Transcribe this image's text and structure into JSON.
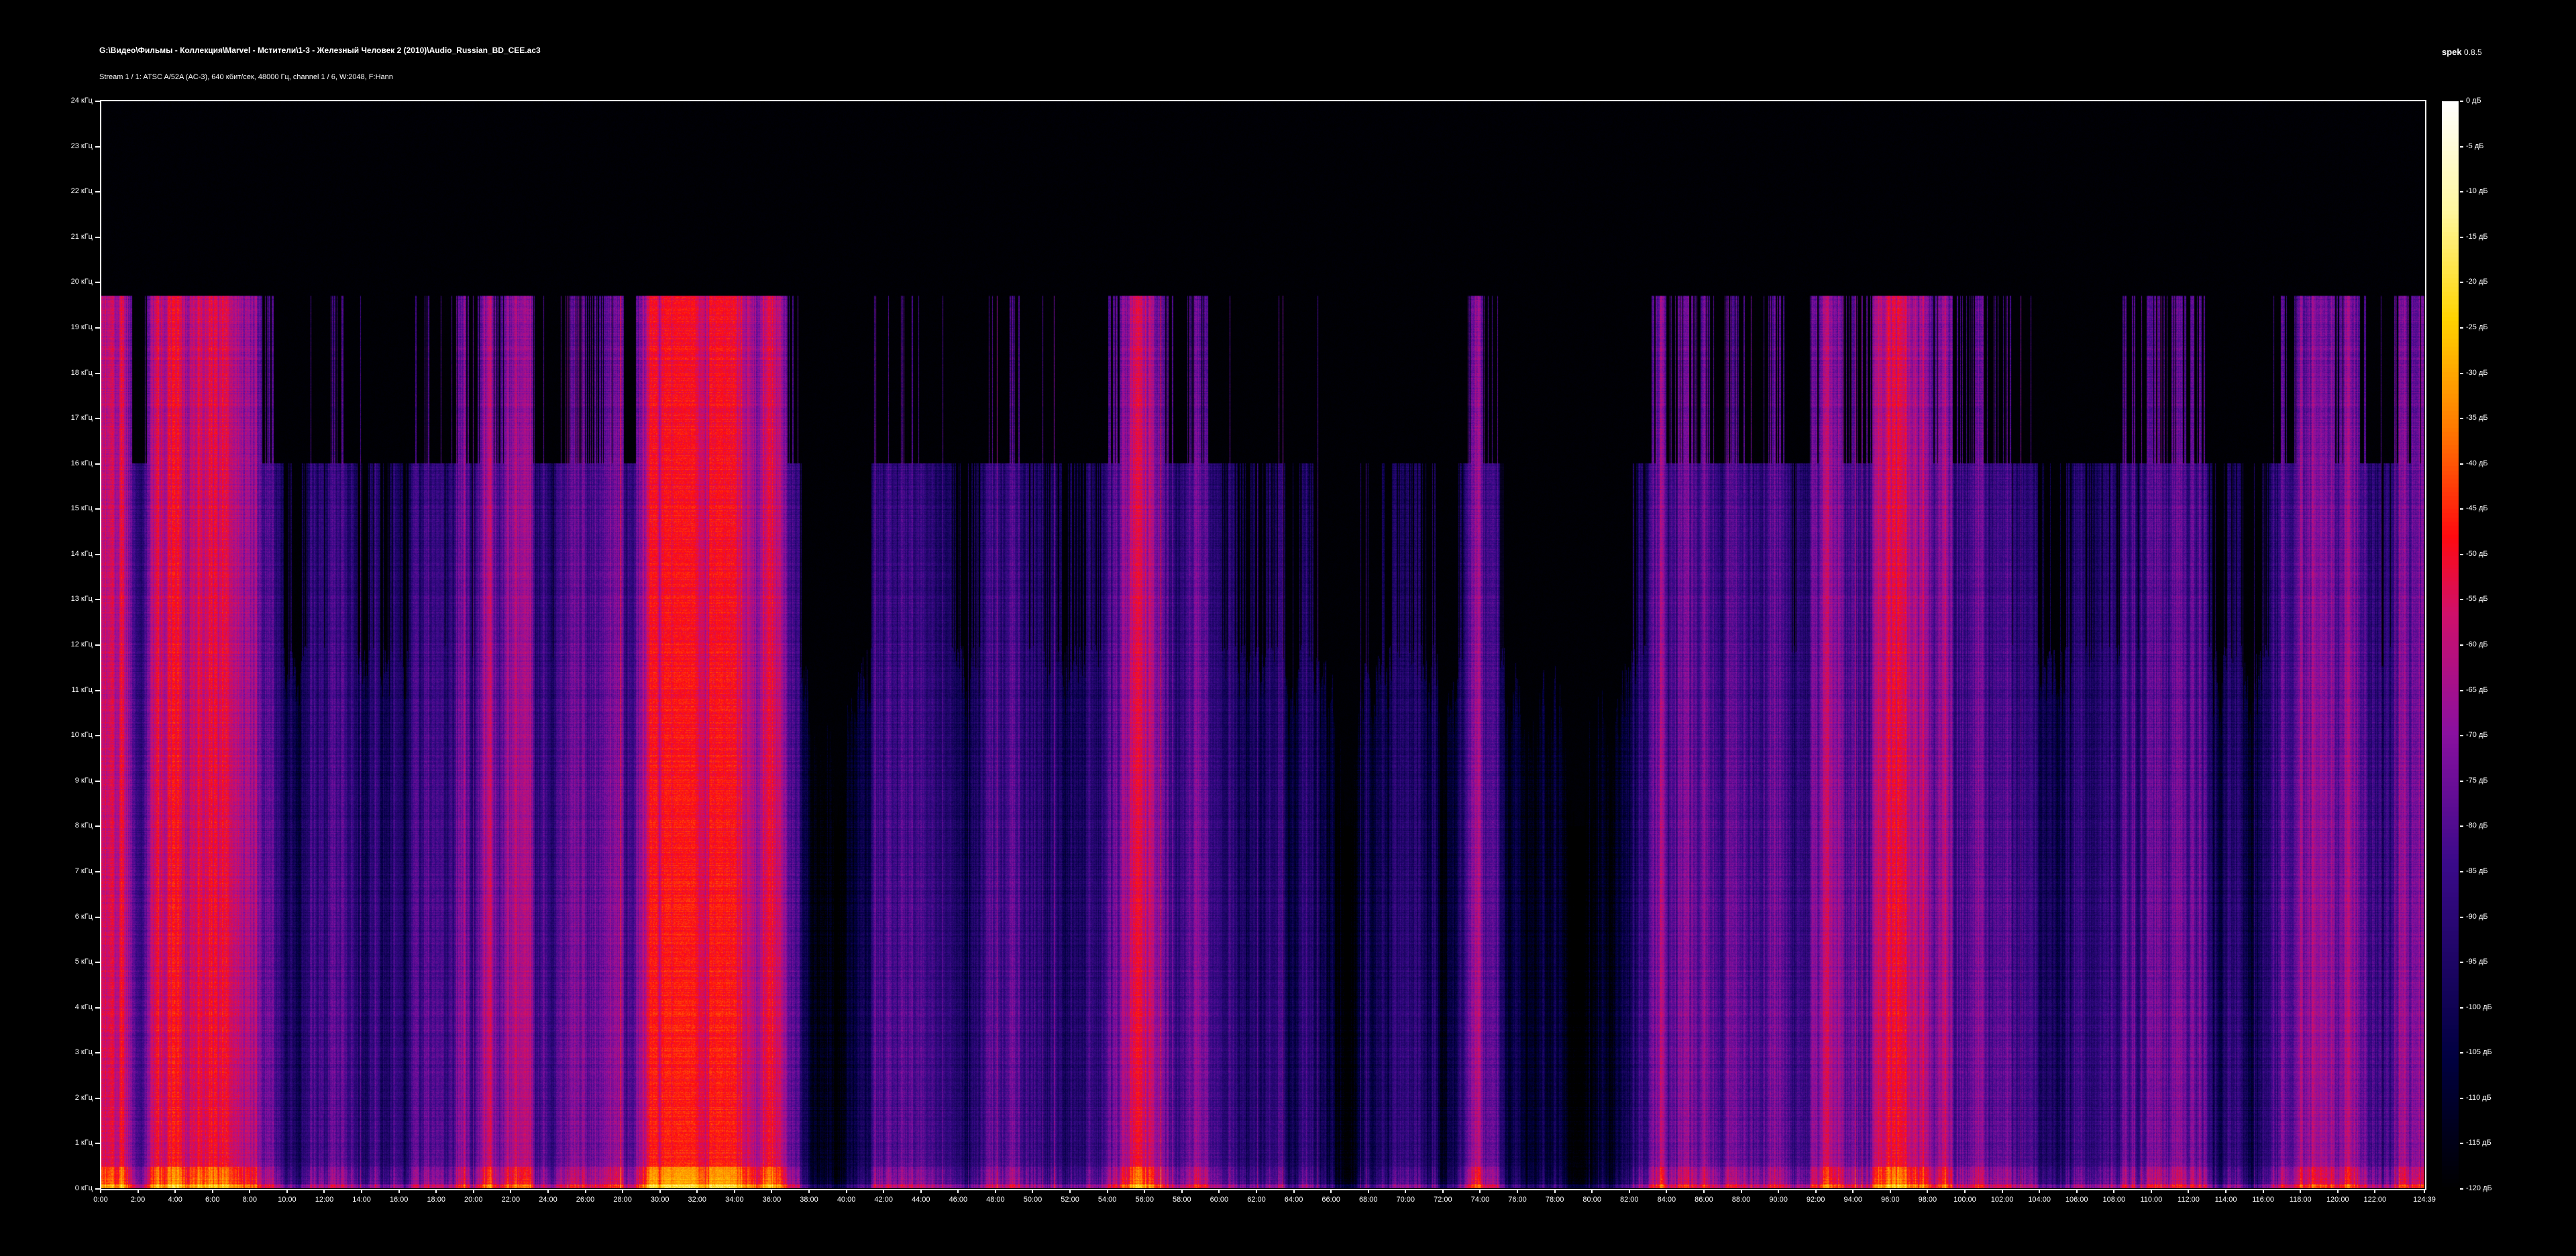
{
  "header": {
    "title": "G:\\Видео\\Фильмы - Коллекция\\Marvel - Мстители\\1-3 - Железный Человек 2 (2010)\\Audio_Russian_BD_CEE.ac3",
    "subtitle": "Stream 1 / 1: ATSC A/52A (AC-3), 640 кбит/сек, 48000 Гц, channel 1 / 6, W:2048, F:Hann",
    "app_name": "spek",
    "app_version": "0.8.5"
  },
  "chart_data": {
    "type": "heatmap",
    "title": "",
    "xlabel": "",
    "ylabel": "",
    "x_range_seconds": [
      0,
      7479
    ],
    "x_ticks": [
      "0:00",
      "2:00",
      "4:00",
      "6:00",
      "8:00",
      "10:00",
      "12:00",
      "14:00",
      "16:00",
      "18:00",
      "20:00",
      "22:00",
      "24:00",
      "26:00",
      "28:00",
      "30:00",
      "32:00",
      "34:00",
      "36:00",
      "38:00",
      "40:00",
      "42:00",
      "44:00",
      "46:00",
      "48:00",
      "50:00",
      "52:00",
      "54:00",
      "56:00",
      "58:00",
      "60:00",
      "62:00",
      "64:00",
      "66:00",
      "68:00",
      "70:00",
      "72:00",
      "74:00",
      "76:00",
      "78:00",
      "80:00",
      "82:00",
      "84:00",
      "86:00",
      "88:00",
      "90:00",
      "92:00",
      "94:00",
      "96:00",
      "98:00",
      "100:00",
      "102:00",
      "104:00",
      "106:00",
      "108:00",
      "110:00",
      "112:00",
      "114:00",
      "116:00",
      "118:00",
      "120:00",
      "122:00",
      "124:39"
    ],
    "y_range_khz": [
      0,
      24
    ],
    "y_ticks": [
      "0 кГц",
      "1 кГц",
      "2 кГц",
      "3 кГц",
      "4 кГц",
      "5 кГц",
      "6 кГц",
      "7 кГц",
      "8 кГц",
      "9 кГц",
      "10 кГц",
      "11 кГц",
      "12 кГц",
      "13 кГц",
      "14 кГц",
      "15 кГц",
      "16 кГц",
      "17 кГц",
      "18 кГц",
      "19 кГц",
      "20 кГц",
      "21 кГц",
      "22 кГц",
      "23 кГц",
      "24 кГц"
    ],
    "color_range_db": [
      -120,
      0
    ],
    "colorbar_ticks": [
      "0 дБ",
      "-5 дБ",
      "-10 дБ",
      "-15 дБ",
      "-20 дБ",
      "-25 дБ",
      "-30 дБ",
      "-35 дБ",
      "-40 дБ",
      "-45 дБ",
      "-50 дБ",
      "-55 дБ",
      "-60 дБ",
      "-65 дБ",
      "-70 дБ",
      "-75 дБ",
      "-80 дБ",
      "-85 дБ",
      "-90 дБ",
      "-95 дБ",
      "-100 дБ",
      "-105 дБ",
      "-110 дБ",
      "-115 дБ",
      "-120 дБ"
    ],
    "colormap": [
      "#000000",
      "#000040",
      "#3a0a8a",
      "#8a10a0",
      "#d0106a",
      "#ff0a10",
      "#ff7a00",
      "#ffd400",
      "#fff8a0",
      "#ffffff"
    ],
    "upper_cutoff_khz": 19.7,
    "intensity_per_2min": [
      0.8,
      0.55,
      0.8,
      0.95,
      0.6,
      0.55,
      0.5,
      0.45,
      0.5,
      0.65,
      0.55,
      0.75,
      0.4,
      0.75,
      0.55,
      0.8,
      0.8,
      0.8,
      0.8,
      0.3,
      0.3,
      0.4,
      0.5,
      0.4,
      0.5,
      0.45,
      0.55,
      0.65,
      0.7,
      0.75,
      0.6,
      0.45,
      0.45,
      0.4,
      0.35,
      0.4,
      0.4,
      0.45,
      0.2,
      0.2,
      0.3,
      0.65,
      0.75,
      0.8,
      0.75,
      0.6,
      0.6,
      0.7,
      0.75,
      0.7,
      0.7,
      0.65,
      0.55,
      0.6,
      0.55,
      0.7,
      0.65,
      0.5,
      0.35,
      0.85,
      0.8,
      0.85,
      0.7
    ]
  }
}
